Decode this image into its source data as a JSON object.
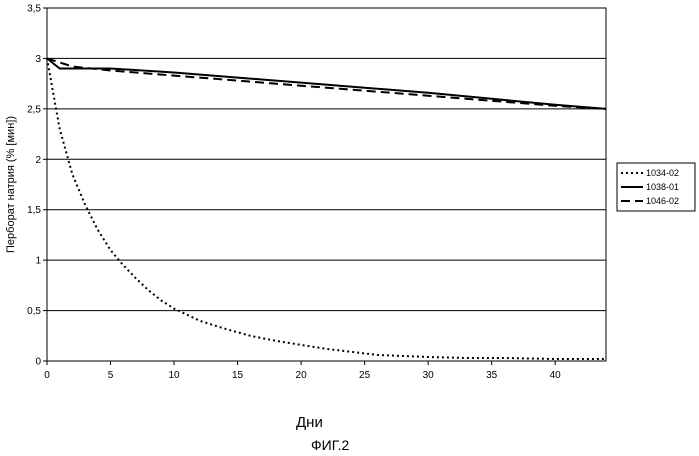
{
  "chart_data": {
    "type": "line",
    "title": "",
    "xlabel": "Дни",
    "ylabel": "Перборат натрия (% [мин])",
    "xlim": [
      0,
      44
    ],
    "ylim": [
      0,
      3.5
    ],
    "xticks": [
      "0",
      "5",
      "10",
      "15",
      "20",
      "25",
      "30",
      "35",
      "40"
    ],
    "yticks": [
      "0",
      "0,5",
      "1",
      "1,5",
      "2",
      "2,5",
      "3",
      "3,5"
    ],
    "grid": "horizontal",
    "legend_position": "right",
    "series": [
      {
        "name": "1034-02",
        "style": "dotted",
        "color": "#000000",
        "x": [
          0,
          1,
          2,
          3,
          4,
          5,
          6,
          7,
          8,
          9,
          10,
          11,
          12,
          14,
          16,
          18,
          20,
          22,
          24,
          26,
          28,
          30,
          33,
          36,
          40,
          44
        ],
        "y": [
          3.0,
          2.3,
          1.85,
          1.55,
          1.3,
          1.1,
          0.95,
          0.82,
          0.7,
          0.6,
          0.52,
          0.46,
          0.4,
          0.32,
          0.25,
          0.2,
          0.16,
          0.12,
          0.09,
          0.06,
          0.05,
          0.04,
          0.03,
          0.03,
          0.02,
          0.02
        ]
      },
      {
        "name": "1038-01",
        "style": "solid",
        "color": "#000000",
        "x": [
          0,
          1,
          2,
          5,
          10,
          15,
          20,
          25,
          30,
          35,
          40,
          44
        ],
        "y": [
          3.0,
          2.9,
          2.9,
          2.9,
          2.86,
          2.81,
          2.76,
          2.71,
          2.66,
          2.6,
          2.54,
          2.5
        ]
      },
      {
        "name": "1046-02",
        "style": "dashed",
        "color": "#000000",
        "x": [
          0,
          2,
          5,
          10,
          15,
          20,
          25,
          30,
          35,
          40,
          44
        ],
        "y": [
          3.0,
          2.92,
          2.88,
          2.83,
          2.78,
          2.73,
          2.68,
          2.63,
          2.58,
          2.53,
          2.5
        ]
      }
    ]
  },
  "caption": "ФИГ.2"
}
